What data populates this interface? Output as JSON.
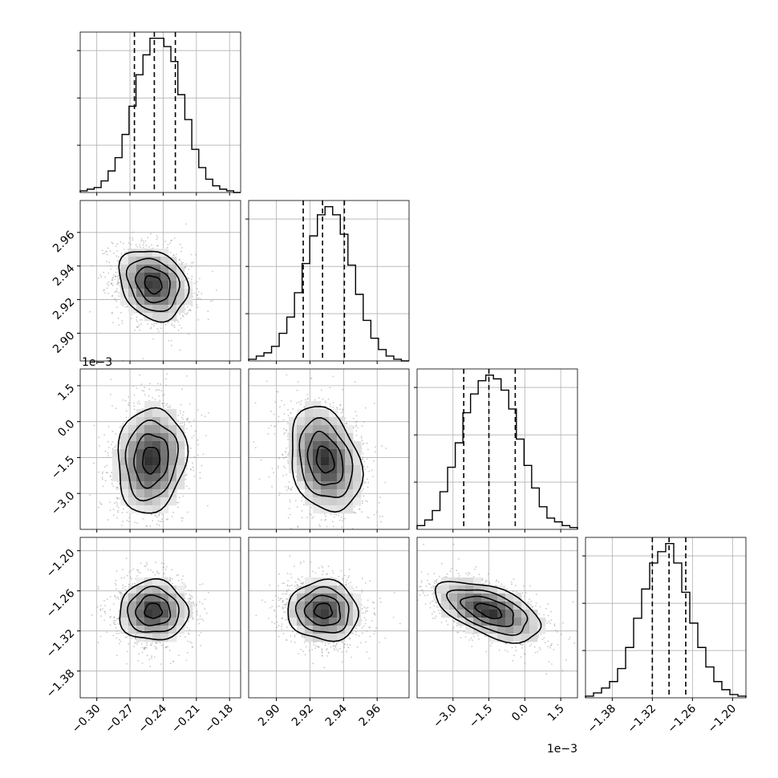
{
  "chart_data": {
    "type": "corner",
    "grid": true,
    "parameters": [
      {
        "id": "p0",
        "range": [
          -0.315,
          -0.17
        ],
        "ticks": [
          -0.3,
          -0.27,
          -0.24,
          -0.21,
          -0.18
        ],
        "tick_labels": [
          "−0.30",
          "−0.27",
          "−0.24",
          "−0.21",
          "−0.18"
        ],
        "quantiles": [
          -0.266,
          -0.248,
          -0.229
        ],
        "offset_label": ""
      },
      {
        "id": "p1",
        "range": [
          2.8835,
          2.979
        ],
        "ticks": [
          2.9,
          2.92,
          2.94,
          2.96
        ],
        "tick_labels": [
          "2.90",
          "2.92",
          "2.94",
          "2.96"
        ],
        "quantiles": [
          2.916,
          2.9275,
          2.9405
        ],
        "offset_label": ""
      },
      {
        "id": "p2",
        "range": [
          -4.5,
          2.2
        ],
        "ticks": [
          -3.0,
          -1.5,
          0.0,
          1.5
        ],
        "tick_labels": [
          "−3.0",
          "−1.5",
          "0.0",
          "1.5"
        ],
        "quantiles": [
          -2.55,
          -1.5,
          -0.4
        ],
        "offset_label": "1e−3"
      },
      {
        "id": "p3",
        "range": [
          -1.42,
          -1.18
        ],
        "ticks": [
          -1.38,
          -1.32,
          -1.26,
          -1.2
        ],
        "tick_labels": [
          "−1.38",
          "−1.32",
          "−1.26",
          "−1.20"
        ],
        "quantiles": [
          -1.32,
          -1.295,
          -1.27
        ],
        "offset_label": ""
      }
    ],
    "histograms": [
      {
        "param": "p0",
        "counts": [
          1,
          2,
          3,
          7,
          13,
          21,
          35,
          52,
          71,
          83,
          93,
          93,
          88,
          79,
          59,
          44,
          26,
          15,
          8,
          4,
          2,
          1,
          0
        ]
      },
      {
        "param": "p1",
        "counts": [
          1,
          3,
          5,
          9,
          17,
          27,
          42,
          60,
          77,
          90,
          95,
          90,
          78,
          59,
          41,
          25,
          14,
          7,
          3,
          1,
          0
        ]
      },
      {
        "param": "p2",
        "counts": [
          2,
          5,
          10,
          20,
          33,
          46,
          62,
          72,
          79,
          82,
          80,
          74,
          64,
          48,
          34,
          22,
          12,
          6,
          4,
          2,
          1
        ]
      },
      {
        "param": "p3",
        "counts": [
          1,
          3,
          6,
          10,
          18,
          31,
          49,
          67,
          83,
          90,
          95,
          83,
          65,
          46,
          31,
          19,
          10,
          5,
          2,
          1
        ]
      }
    ],
    "joint_distributions": [
      {
        "x": "p0",
        "y": "p1",
        "center": [
          -0.249,
          2.929
        ],
        "sigma": [
          0.0155,
          0.0105
        ],
        "correlation": -0.22
      },
      {
        "x": "p0",
        "y": "p2",
        "center": [
          -0.251,
          -1.6
        ],
        "sigma": [
          0.0155,
          1.1
        ],
        "correlation": 0.1
      },
      {
        "x": "p1",
        "y": "p2",
        "center": [
          2.929,
          -1.6
        ],
        "sigma": [
          0.0105,
          1.1
        ],
        "correlation": -0.25
      },
      {
        "x": "p0",
        "y": "p3",
        "center": [
          -0.249,
          -1.29
        ],
        "sigma": [
          0.0155,
          0.0225
        ],
        "correlation": 0.0
      },
      {
        "x": "p1",
        "y": "p3",
        "center": [
          2.928,
          -1.29
        ],
        "sigma": [
          0.0105,
          0.0225
        ],
        "correlation": -0.05
      },
      {
        "x": "p2",
        "y": "p3",
        "center": [
          -1.5,
          -1.29
        ],
        "sigma": [
          1.1,
          0.0225
        ],
        "correlation": -0.55
      }
    ]
  }
}
